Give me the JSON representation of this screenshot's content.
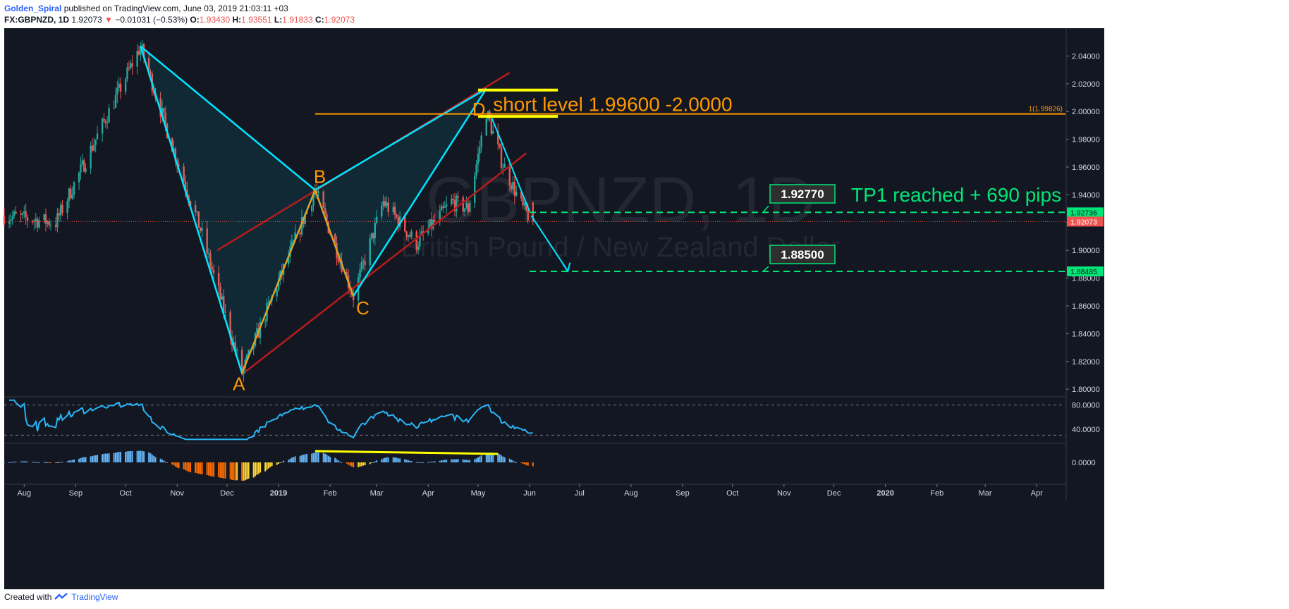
{
  "header": {
    "author": "Golden_Spiral",
    "published": "published on TradingView.com, June 03, 2019 21:03:11 +03",
    "symbol": "FX:GBPNZD, 1D",
    "last": "1.92073",
    "change": "−0.01031 (−0.53%)",
    "o_label": "O:",
    "o": "1.93430",
    "h_label": "H:",
    "h": "1.93551",
    "l_label": "L:",
    "l": "1.91833",
    "c_label": "C:",
    "c": "1.92073"
  },
  "footer": {
    "created": "Created with",
    "brand": "TradingView"
  },
  "colors": {
    "background": "#131722",
    "up": "#26a69a",
    "down": "#ef5350",
    "pattern": "#00e5ff",
    "orange": "#ff9800",
    "channel": "#b71c1c",
    "yellow": "#ffff00",
    "target": "#00e676"
  },
  "watermark": {
    "symbol": "GBPNZD, 1D",
    "name": "British Pound / New Zealand Dollar"
  },
  "annotations": {
    "short_level": "short level 1.99600 -2.0000",
    "fib_label": "1(1.99826)",
    "tp1_box": "1.92770",
    "tp1_text": "TP1 reached + 690 pips",
    "tp2_box": "1.88500",
    "points": [
      {
        "label": "A",
        "date": "2018-12-10",
        "price": 1.8115
      },
      {
        "label": "B",
        "date": "2019-01-23",
        "price": 1.9435
      },
      {
        "label": "C",
        "date": "2019-02-15",
        "price": 1.867
      },
      {
        "label": "D",
        "date": "2019-05-06",
        "price": 2.0
      }
    ]
  },
  "price_axis": {
    "ticks": [
      "2.04000",
      "2.02000",
      "2.00000",
      "1.98000",
      "1.96000",
      "1.94000",
      "1.92000",
      "1.90000",
      "1.88000",
      "1.86000",
      "1.84000",
      "1.82000",
      "1.80000"
    ],
    "tags": [
      {
        "value": "1.92736",
        "color": "#00e676"
      },
      {
        "value": "1.92073",
        "color": "#ef5350"
      },
      {
        "value": "1.88485",
        "color": "#00e676"
      }
    ]
  },
  "rsi_axis": {
    "ticks": [
      "80.0000",
      "40.0000"
    ]
  },
  "macd_axis": {
    "ticks": [
      "0.0000"
    ]
  },
  "time_axis": {
    "ticks": [
      "Aug",
      "Sep",
      "Oct",
      "Nov",
      "Dec",
      "2019",
      "Feb",
      "Mar",
      "Apr",
      "May",
      "Jun",
      "Jul",
      "Aug",
      "Sep",
      "Oct",
      "Nov",
      "Dec",
      "2020",
      "Feb",
      "Mar",
      "Apr"
    ]
  },
  "chart_data": {
    "type": "candlestick",
    "symbol": "FX:GBPNZD",
    "interval": "1D",
    "ylim": [
      1.795,
      2.058
    ],
    "x_range": [
      "2018-07-20",
      "2020-04-20"
    ],
    "key_points": [
      {
        "date": "2018-07-20",
        "price": 1.925
      },
      {
        "date": "2018-08-20",
        "price": 1.92
      },
      {
        "date": "2018-09-15",
        "price": 1.985
      },
      {
        "date": "2018-10-10",
        "price": 2.047
      },
      {
        "date": "2018-10-25",
        "price": 1.99
      },
      {
        "date": "2018-11-15",
        "price": 1.915
      },
      {
        "date": "2018-12-10",
        "price": 1.8115
      },
      {
        "date": "2019-01-23",
        "price": 1.9435
      },
      {
        "date": "2019-02-15",
        "price": 1.867
      },
      {
        "date": "2019-03-05",
        "price": 1.935
      },
      {
        "date": "2019-03-25",
        "price": 1.905
      },
      {
        "date": "2019-04-15",
        "price": 1.935
      },
      {
        "date": "2019-04-25",
        "price": 1.93
      },
      {
        "date": "2019-05-06",
        "price": 2.0
      },
      {
        "date": "2019-05-15",
        "price": 1.965
      },
      {
        "date": "2019-05-28",
        "price": 1.93
      },
      {
        "date": "2019-06-03",
        "price": 1.9207
      }
    ],
    "horizontal_levels": [
      {
        "price": 1.9983,
        "color": "#ff9800",
        "from": "2019-01-23"
      },
      {
        "price": 1.92736,
        "color": "#00e676",
        "style": "dashed",
        "from": "2019-06-01"
      },
      {
        "price": 1.88485,
        "color": "#00e676",
        "style": "dashed",
        "from": "2019-06-01"
      },
      {
        "price": 1.92073,
        "color": "#ef5350",
        "style": "dotted"
      }
    ],
    "projection": [
      {
        "date": "2019-06-02",
        "price": 1.925
      },
      {
        "date": "2019-06-24",
        "price": 1.885
      }
    ],
    "rsi_levels": [
      80,
      30
    ],
    "rsi_ylim": [
      20,
      90
    ]
  }
}
